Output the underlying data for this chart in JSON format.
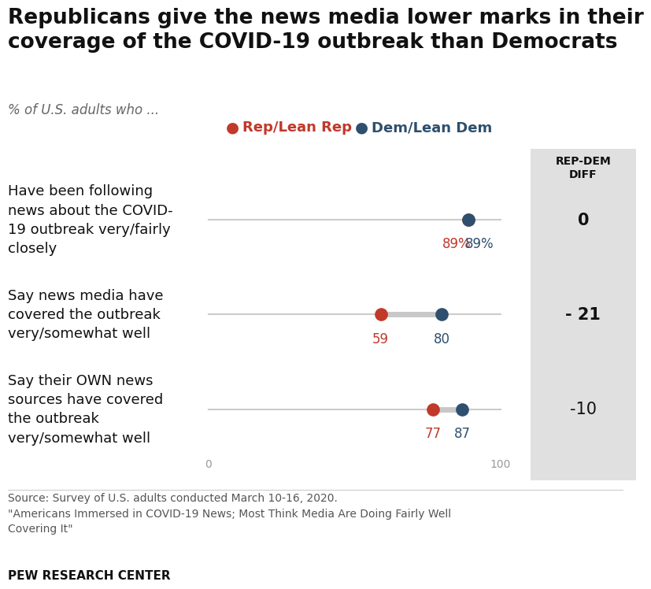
{
  "title": "Republicans give the news media lower marks in their\ncoverage of the COVID-19 outbreak than Democrats",
  "subtitle": "% of U.S. adults who ...",
  "categories": [
    "Have been following\nnews about the COVID-\n19 outbreak very/fairly\nclosely",
    "Say news media have\ncovered the outbreak\nvery/somewhat well",
    "Say their OWN news\nsources have covered\nthe outbreak\nvery/somewhat well"
  ],
  "rep_values": [
    89,
    59,
    77
  ],
  "dem_values": [
    89,
    80,
    87
  ],
  "rep_labels": [
    "89%",
    "59",
    "77"
  ],
  "dem_labels": [
    "89%",
    "80",
    "87"
  ],
  "diff_values": [
    "0",
    "- 21",
    "-10"
  ],
  "diff_fontweights": [
    "bold",
    "bold",
    "normal"
  ],
  "rep_color": "#c0392b",
  "dem_color": "#2e4f6e",
  "line_color": "#cccccc",
  "connector_color": "#c8c8c8",
  "diff_bg_color": "#e0e0e0",
  "xmin": 0,
  "xmax": 100,
  "rep_legend": "Rep/Lean Rep",
  "dem_legend": "Dem/Lean Dem",
  "diff_header": "REP-DEM\nDIFF",
  "source_text": "Source: Survey of U.S. adults conducted March 10-16, 2020.\n\"Americans Immersed in COVID-19 News; Most Think Media Are Doing Fairly Well\nCovering It\"",
  "footer": "PEW RESEARCH CENTER",
  "background_color": "#ffffff",
  "title_fontsize": 19,
  "cat_fontsize": 13,
  "legend_fontsize": 13,
  "diff_fontsize": 15,
  "value_label_fontsize": 12,
  "source_fontsize": 10,
  "footer_fontsize": 11
}
